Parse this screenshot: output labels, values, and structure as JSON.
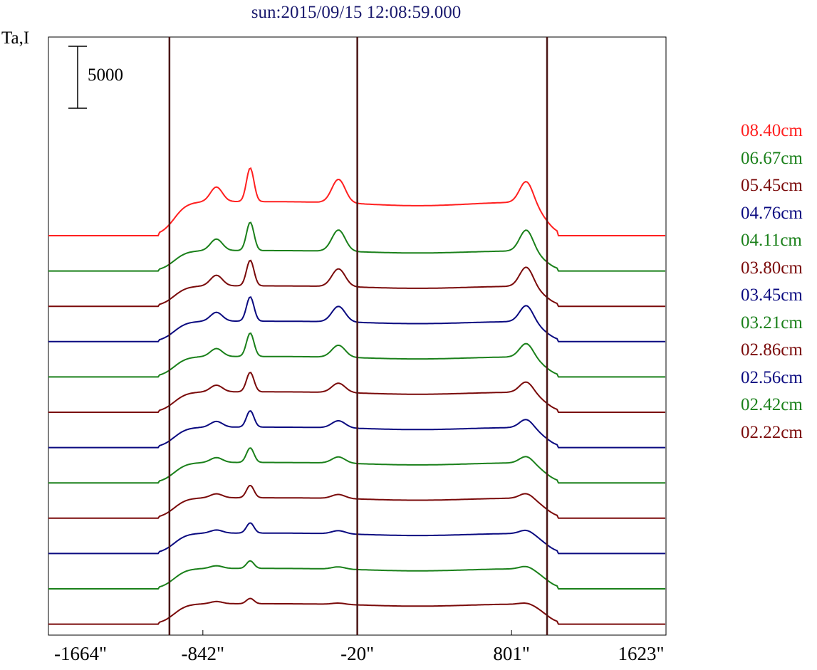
{
  "title": "sun:2015/09/15 12:08:59.000",
  "ylabel": "Ta,I",
  "scale_label": "5000",
  "chart_data": {
    "type": "line",
    "title": "sun:2015/09/15 12:08:59.000",
    "ylabel": "Ta,I",
    "xlabel": "",
    "x_ticks": [
      "-1664\"",
      "-842\"",
      "-20\"",
      "801\"",
      "1623\""
    ],
    "x_tick_values": [
      -1664,
      -842,
      -20,
      801,
      1623
    ],
    "xlim": [
      -1664,
      1623
    ],
    "vertical_lines_x": [
      -1020,
      -20,
      990
    ],
    "scale_bar_value": 5000,
    "series": [
      {
        "name": "08.40cm",
        "color": "#ff2020",
        "baseline": 0,
        "limb": 5000,
        "peaks": [
          [
            -770,
            3300
          ],
          [
            -590,
            7600
          ],
          [
            -120,
            5300
          ],
          [
            880,
            5000
          ]
        ]
      },
      {
        "name": "06.67cm",
        "color": "#1a801a",
        "baseline": 0,
        "limb": 3000,
        "peaks": [
          [
            -770,
            2600
          ],
          [
            -590,
            6400
          ],
          [
            -120,
            4800
          ],
          [
            880,
            4900
          ]
        ]
      },
      {
        "name": "05.45cm",
        "color": "#7a0a0a",
        "baseline": 0,
        "limb": 3000,
        "peaks": [
          [
            -770,
            2400
          ],
          [
            -590,
            5800
          ],
          [
            -120,
            4000
          ],
          [
            880,
            4500
          ]
        ]
      },
      {
        "name": "04.76cm",
        "color": "#0a0a80",
        "baseline": 0,
        "limb": 3000,
        "peaks": [
          [
            -770,
            2000
          ],
          [
            -590,
            5500
          ],
          [
            -120,
            3500
          ],
          [
            880,
            3800
          ]
        ]
      },
      {
        "name": "04.11cm",
        "color": "#1a801a",
        "baseline": 0,
        "limb": 3000,
        "peaks": [
          [
            -770,
            1800
          ],
          [
            -590,
            5300
          ],
          [
            -120,
            2700
          ],
          [
            880,
            3200
          ]
        ]
      },
      {
        "name": "03.80cm",
        "color": "#7a0a0a",
        "baseline": 0,
        "limb": 3000,
        "peaks": [
          [
            -770,
            1500
          ],
          [
            -590,
            4400
          ],
          [
            -120,
            2100
          ],
          [
            880,
            2500
          ]
        ]
      },
      {
        "name": "03.45cm",
        "color": "#0a0a80",
        "baseline": 0,
        "limb": 3000,
        "peaks": [
          [
            -770,
            1300
          ],
          [
            -590,
            3700
          ],
          [
            -120,
            1600
          ],
          [
            880,
            2000
          ]
        ]
      },
      {
        "name": "03.21cm",
        "color": "#1a801a",
        "baseline": 0,
        "limb": 3000,
        "peaks": [
          [
            -770,
            1100
          ],
          [
            -590,
            3300
          ],
          [
            -120,
            1400
          ],
          [
            880,
            1600
          ]
        ]
      },
      {
        "name": "02.86cm",
        "color": "#7a0a0a",
        "baseline": 0,
        "limb": 3000,
        "peaks": [
          [
            -770,
            900
          ],
          [
            -590,
            2800
          ],
          [
            -120,
            900
          ],
          [
            880,
            1200
          ]
        ]
      },
      {
        "name": "02.56cm",
        "color": "#0a0a80",
        "baseline": 0,
        "limb": 3000,
        "peaks": [
          [
            -770,
            700
          ],
          [
            -590,
            2300
          ],
          [
            -120,
            700
          ],
          [
            880,
            900
          ]
        ]
      },
      {
        "name": "02.42cm",
        "color": "#1a801a",
        "baseline": 0,
        "limb": 3000,
        "peaks": [
          [
            -770,
            600
          ],
          [
            -590,
            1700
          ],
          [
            -120,
            500
          ],
          [
            880,
            700
          ]
        ]
      },
      {
        "name": "02.22cm",
        "color": "#7a0a0a",
        "baseline": 0,
        "limb": 3000,
        "peaks": [
          [
            -770,
            500
          ],
          [
            -590,
            1200
          ],
          [
            -120,
            300
          ],
          [
            880,
            400
          ]
        ]
      }
    ]
  }
}
